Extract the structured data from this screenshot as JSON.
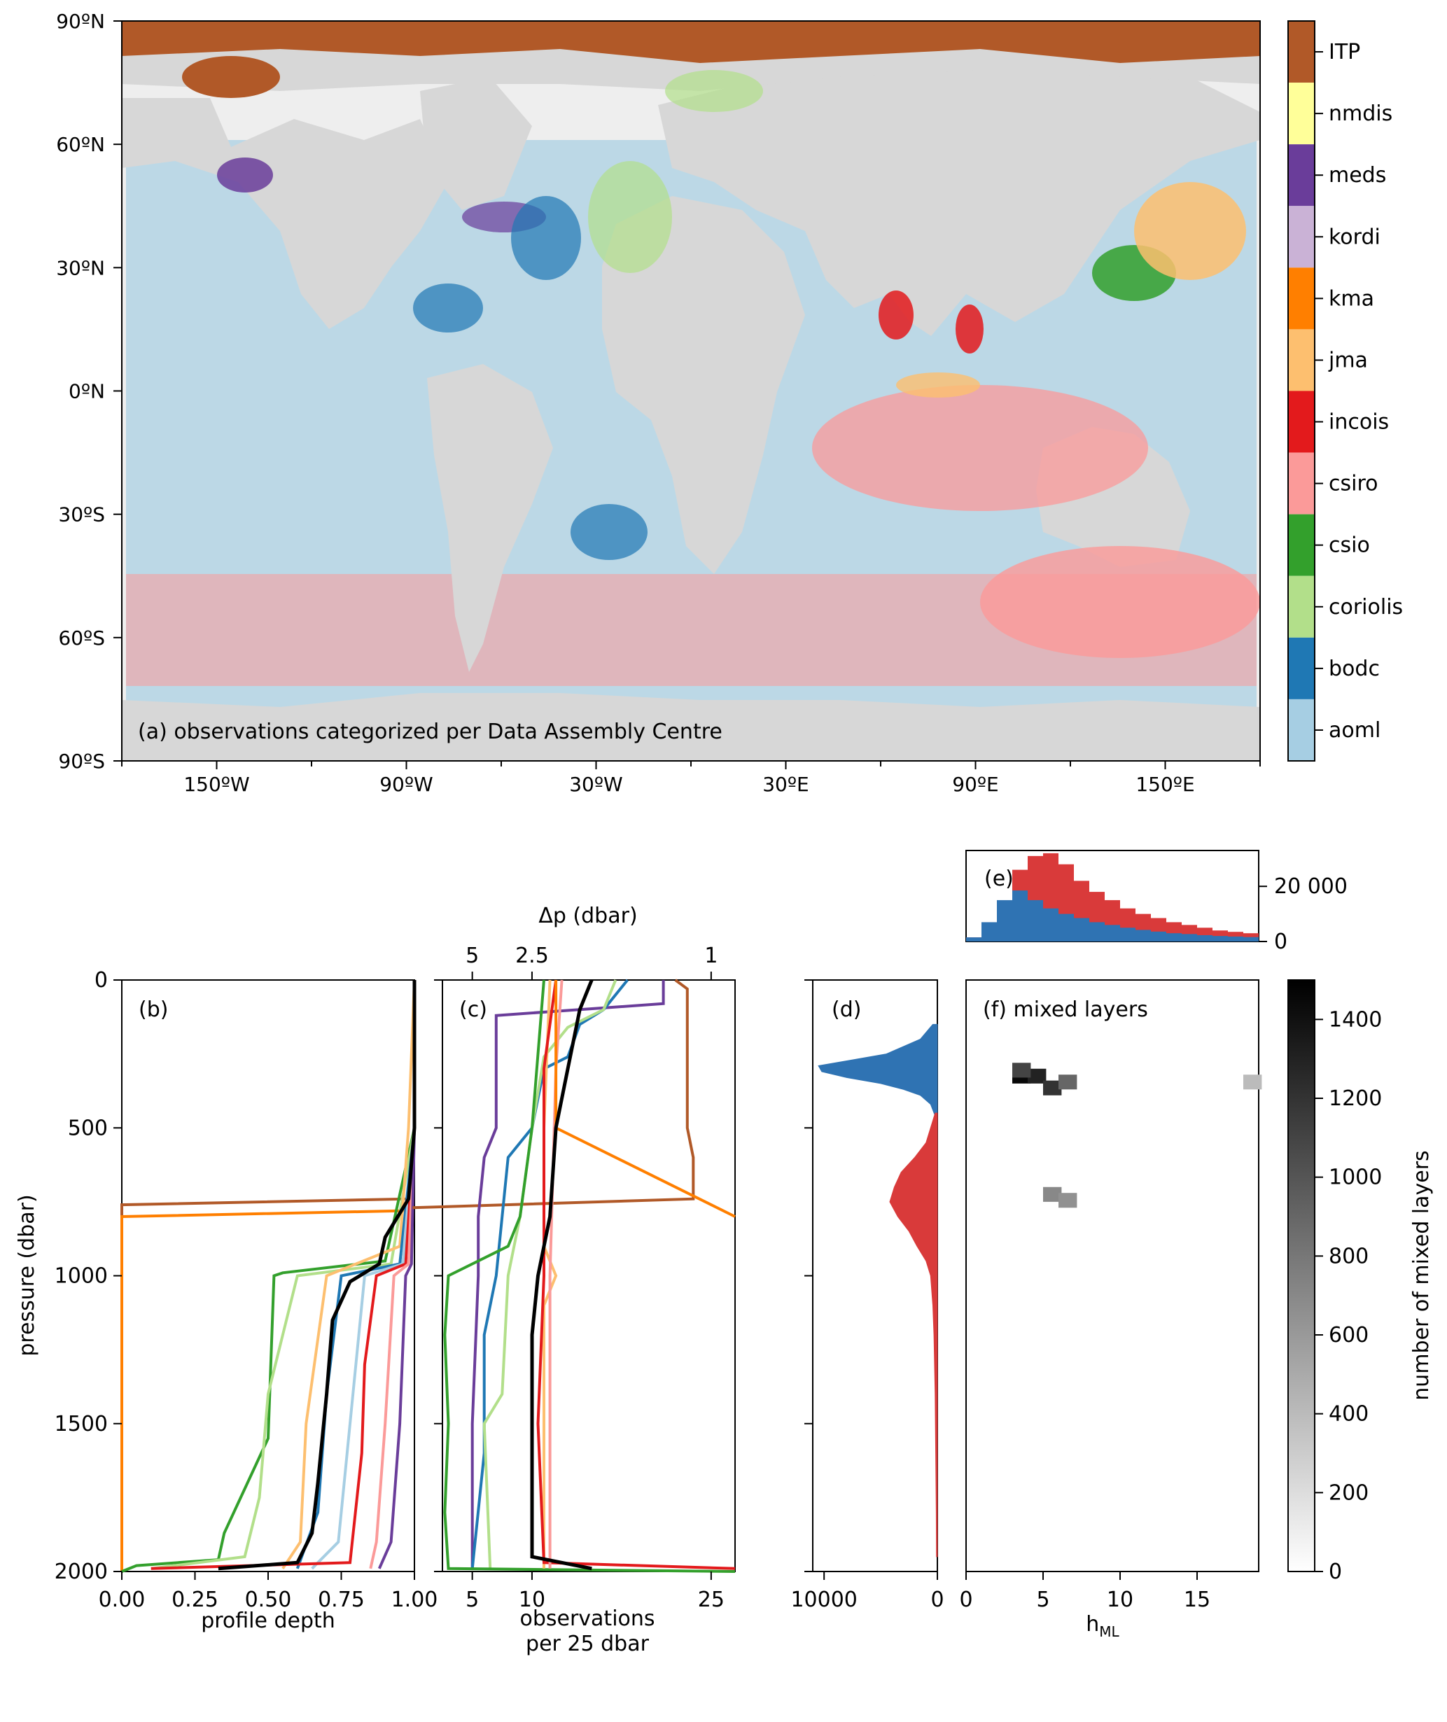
{
  "colors": {
    "aoml": "#a6cee3",
    "bodc": "#1f78b4",
    "coriolis": "#b2df8a",
    "csio": "#33a02c",
    "csiro": "#fb9a99",
    "incois": "#e31a1c",
    "jma": "#fdbf6f",
    "kma": "#ff7f00",
    "kordi": "#cab2d6",
    "meds": "#6a3d9a",
    "nmdis": "#ffff99",
    "ITP": "#b15928",
    "land": "#d7d7d7",
    "nodata": "#eeeeee",
    "ml_blue": "#2f73b3",
    "ml_red": "#d93a3a"
  },
  "panel_a": {
    "label": "(a)  observations categorized per Data Assembly Centre",
    "lat_ticks": [
      "90ºN",
      "60ºN",
      "30ºN",
      "0ºN",
      "30ºS",
      "60ºS",
      "90ºS"
    ],
    "lon_ticks": [
      "150ºW",
      "90ºW",
      "30ºW",
      "30ºE",
      "90ºE",
      "150ºE"
    ],
    "legend": [
      "ITP",
      "nmdis",
      "meds",
      "kordi",
      "kma",
      "jma",
      "incois",
      "csiro",
      "csio",
      "coriolis",
      "bodc",
      "aoml"
    ]
  },
  "panel_b": {
    "label": "(b)",
    "xlabel": "profile depth",
    "xticks": [
      "0.00",
      "0.25",
      "0.50",
      "0.75",
      "1.00"
    ]
  },
  "panel_c": {
    "label": "(c)",
    "xlabel_1": "observations",
    "xlabel_2": "per 25 dbar",
    "xticks": [
      "5",
      "10",
      "25"
    ],
    "top_label": "Δp (dbar)",
    "top_ticks": [
      "5",
      "2.5",
      "1"
    ]
  },
  "panel_d": {
    "label": "(d)",
    "xticks": [
      "10000",
      "0"
    ]
  },
  "panel_e": {
    "label": "(e)",
    "yticks": [
      "20 000",
      "0"
    ]
  },
  "panel_f": {
    "label": "(f) mixed layers",
    "xlabel": "h",
    "xlabel_sub": "ML",
    "xticks": [
      "0",
      "5",
      "10",
      "15"
    ],
    "colorbar_label": "number of mixed layers",
    "colorbar_ticks": [
      "1400",
      "1200",
      "1000",
      "800",
      "600",
      "400",
      "200",
      "0"
    ]
  },
  "shared_axis": {
    "ylabel": "pressure (dbar)",
    "yticks": [
      "0",
      "500",
      "1000",
      "1500",
      "2000"
    ]
  },
  "chart_data": [
    {
      "type": "line",
      "panel": "b",
      "xlabel": "profile depth",
      "ylabel": "pressure (dbar)",
      "xlim": [
        0,
        1
      ],
      "ylim": [
        2000,
        0
      ],
      "series": [
        {
          "name": "ITP",
          "points": [
            [
              1,
              0
            ],
            [
              1,
              500
            ],
            [
              0.98,
              740
            ],
            [
              0,
              760
            ],
            [
              0,
              2000
            ]
          ]
        },
        {
          "name": "kma",
          "points": [
            [
              1,
              0
            ],
            [
              1,
              500
            ],
            [
              0.98,
              780
            ],
            [
              0,
              800
            ],
            [
              0,
              2000
            ]
          ]
        },
        {
          "name": "csio",
          "points": [
            [
              1,
              0
            ],
            [
              1,
              500
            ],
            [
              0.9,
              950
            ],
            [
              0.55,
              990
            ],
            [
              0.52,
              1000
            ],
            [
              0.5,
              1550
            ],
            [
              0.35,
              1870
            ],
            [
              0.33,
              1960
            ],
            [
              0.05,
              1980
            ],
            [
              0,
              2000
            ]
          ]
        },
        {
          "name": "coriolis",
          "points": [
            [
              1,
              0
            ],
            [
              1,
              500
            ],
            [
              0.92,
              960
            ],
            [
              0.6,
              1000
            ],
            [
              0.5,
              1400
            ],
            [
              0.47,
              1750
            ],
            [
              0.42,
              1950
            ],
            [
              0.1,
              1990
            ]
          ]
        },
        {
          "name": "jma",
          "points": [
            [
              1,
              0
            ],
            [
              0.98,
              500
            ],
            [
              0.95,
              900
            ],
            [
              0.7,
              1000
            ],
            [
              0.63,
              1500
            ],
            [
              0.61,
              1900
            ],
            [
              0.55,
              1990
            ]
          ]
        },
        {
          "name": "bodc",
          "points": [
            [
              1,
              0
            ],
            [
              1,
              500
            ],
            [
              0.95,
              960
            ],
            [
              0.75,
              1000
            ],
            [
              0.7,
              1400
            ],
            [
              0.67,
              1800
            ],
            [
              0.6,
              1990
            ]
          ]
        },
        {
          "name": "aoml",
          "points": [
            [
              1,
              0
            ],
            [
              1,
              500
            ],
            [
              0.96,
              960
            ],
            [
              0.83,
              1000
            ],
            [
              0.78,
              1500
            ],
            [
              0.74,
              1900
            ],
            [
              0.65,
              1990
            ]
          ]
        },
        {
          "name": "incois",
          "points": [
            [
              1,
              0
            ],
            [
              1,
              500
            ],
            [
              0.97,
              960
            ],
            [
              0.87,
              1000
            ],
            [
              0.83,
              1300
            ],
            [
              0.82,
              1600
            ],
            [
              0.78,
              1970
            ],
            [
              0.1,
              1990
            ]
          ]
        },
        {
          "name": "csiro",
          "points": [
            [
              1,
              0
            ],
            [
              1,
              500
            ],
            [
              0.98,
              960
            ],
            [
              0.93,
              1000
            ],
            [
              0.9,
              1500
            ],
            [
              0.87,
              1900
            ],
            [
              0.85,
              1990
            ]
          ]
        },
        {
          "name": "meds",
          "points": [
            [
              1,
              0
            ],
            [
              1,
              500
            ],
            [
              0.99,
              960
            ],
            [
              0.97,
              1000
            ],
            [
              0.95,
              1500
            ],
            [
              0.92,
              1900
            ],
            [
              0.88,
              1990
            ]
          ]
        },
        {
          "name": "all",
          "points": [
            [
              1,
              0
            ],
            [
              1,
              500
            ],
            [
              0.98,
              740
            ],
            [
              0.9,
              870
            ],
            [
              0.88,
              960
            ],
            [
              0.78,
              1020
            ],
            [
              0.72,
              1150
            ],
            [
              0.7,
              1400
            ],
            [
              0.67,
              1700
            ],
            [
              0.65,
              1870
            ],
            [
              0.6,
              1970
            ],
            [
              0.33,
              1990
            ]
          ]
        }
      ]
    },
    {
      "type": "line",
      "panel": "c",
      "xlabel": "observations per 25 dbar",
      "ylabel": "pressure (dbar)",
      "xlim": [
        2.5,
        27
      ],
      "ylim": [
        2000,
        0
      ],
      "series": [
        {
          "name": "ITP",
          "points": [
            [
              22,
              0
            ],
            [
              23,
              30
            ],
            [
              23,
              500
            ],
            [
              23.5,
              600
            ],
            [
              23.5,
              740
            ],
            [
              0,
              770
            ]
          ]
        },
        {
          "name": "meds",
          "points": [
            [
              21,
              0
            ],
            [
              21,
              80
            ],
            [
              7,
              120
            ],
            [
              7,
              500
            ],
            [
              6,
              600
            ],
            [
              5.5,
              800
            ],
            [
              5.5,
              1000
            ],
            [
              5,
              1500
            ],
            [
              5,
              1990
            ]
          ]
        },
        {
          "name": "bodc",
          "points": [
            [
              18,
              0
            ],
            [
              16,
              100
            ],
            [
              14,
              150
            ],
            [
              13,
              260
            ],
            [
              11,
              300
            ],
            [
              10,
              500
            ],
            [
              8,
              600
            ],
            [
              7,
              1000
            ],
            [
              6,
              1200
            ],
            [
              6,
              1600
            ],
            [
              5,
              1990
            ]
          ]
        },
        {
          "name": "coriolis",
          "points": [
            [
              17,
              0
            ],
            [
              16,
              100
            ],
            [
              13,
              160
            ],
            [
              11,
              260
            ],
            [
              10,
              500
            ],
            [
              9,
              800
            ],
            [
              8,
              1000
            ],
            [
              7.5,
              1400
            ],
            [
              6,
              1500
            ],
            [
              6.5,
              1990
            ]
          ]
        },
        {
          "name": "csio",
          "points": [
            [
              11,
              0
            ],
            [
              10,
              500
            ],
            [
              9,
              800
            ],
            [
              8,
              900
            ],
            [
              3,
              1000
            ],
            [
              2.7,
              1200
            ],
            [
              3,
              1500
            ],
            [
              2.7,
              1800
            ],
            [
              3,
              1990
            ],
            [
              27,
              2000
            ]
          ]
        },
        {
          "name": "jma",
          "points": [
            [
              11.5,
              0
            ],
            [
              11,
              500
            ],
            [
              11,
              900
            ],
            [
              12,
              1000
            ],
            [
              11,
              1100
            ],
            [
              11,
              1990
            ]
          ]
        },
        {
          "name": "incois",
          "points": [
            [
              12,
              0
            ],
            [
              11,
              300
            ],
            [
              11,
              1000
            ],
            [
              10.5,
              1500
            ],
            [
              11,
              1970
            ],
            [
              27,
              1990
            ]
          ]
        },
        {
          "name": "csiro",
          "points": [
            [
              12.5,
              0
            ],
            [
              12,
              300
            ],
            [
              11.5,
              1000
            ],
            [
              11.5,
              1990
            ]
          ]
        },
        {
          "name": "kma",
          "points": [
            [
              12,
              0
            ],
            [
              12,
              500
            ],
            [
              27,
              800
            ]
          ]
        },
        {
          "name": "all",
          "points": [
            [
              15,
              0
            ],
            [
              14,
              100
            ],
            [
              13,
              300
            ],
            [
              12,
              500
            ],
            [
              11.5,
              800
            ],
            [
              10.5,
              1000
            ],
            [
              10,
              1200
            ],
            [
              10,
              1500
            ],
            [
              10,
              1950
            ],
            [
              15,
              1990
            ]
          ]
        }
      ]
    },
    {
      "type": "bar",
      "panel": "d",
      "orientation": "horizontal",
      "ylabel": "pressure (dbar)",
      "xlim": [
        11000,
        0
      ],
      "ylim": [
        2000,
        0
      ],
      "series": [
        {
          "name": "blue",
          "y": [
            150,
            200,
            250,
            270,
            290,
            310,
            330,
            350,
            370,
            390,
            420,
            460
          ],
          "values": [
            400,
            1500,
            4500,
            7500,
            10500,
            10200,
            8000,
            5000,
            3000,
            1500,
            600,
            200
          ]
        },
        {
          "name": "red",
          "y": [
            450,
            500,
            550,
            600,
            650,
            700,
            750,
            800,
            850,
            900,
            950,
            1000,
            1100,
            1200,
            1400,
            1600,
            1800,
            1950
          ],
          "values": [
            200,
            600,
            1000,
            2000,
            3200,
            3800,
            4200,
            3500,
            2500,
            1800,
            1000,
            600,
            400,
            300,
            200,
            150,
            100,
            80
          ]
        }
      ]
    },
    {
      "type": "bar",
      "panel": "e",
      "xlabel": "h_ML",
      "ylim": [
        0,
        33000
      ],
      "series": [
        {
          "name": "blue",
          "x": [
            1,
            2,
            3,
            4,
            5,
            6,
            7,
            8,
            9,
            10,
            11,
            12,
            13,
            14,
            15,
            16,
            17,
            18,
            19
          ],
          "values": [
            1500,
            7000,
            15000,
            18500,
            15000,
            12000,
            10000,
            8500,
            7000,
            6000,
            5000,
            4200,
            3600,
            3000,
            2700,
            2300,
            2000,
            1800,
            1600
          ]
        },
        {
          "name": "red",
          "x": [
            1,
            2,
            3,
            4,
            5,
            6,
            7,
            8,
            9,
            10,
            11,
            12,
            13,
            14,
            15,
            16,
            17,
            18,
            19
          ],
          "values": [
            1500,
            3000,
            9000,
            26000,
            31000,
            32000,
            28000,
            22000,
            18000,
            15000,
            12000,
            10000,
            8500,
            7000,
            6000,
            5000,
            4000,
            3500,
            3000
          ]
        }
      ]
    },
    {
      "type": "heatmap",
      "panel": "f",
      "xlabel": "h_ML",
      "ylabel": "pressure (dbar)",
      "xlim": [
        0,
        19
      ],
      "ylim": [
        2000,
        0
      ],
      "colorbar_range": [
        0,
        1500
      ],
      "cells": [
        {
          "h": 4,
          "p": 300,
          "v": 1450
        },
        {
          "h": 5,
          "p": 300,
          "v": 1300
        },
        {
          "h": 6,
          "p": 340,
          "v": 1200
        },
        {
          "h": 4,
          "p": 280,
          "v": 1100
        },
        {
          "h": 7,
          "p": 320,
          "v": 900
        },
        {
          "h": 6,
          "p": 700,
          "v": 700
        },
        {
          "h": 7,
          "p": 720,
          "v": 650
        },
        {
          "h": 19,
          "p": 320,
          "v": 400
        }
      ]
    }
  ]
}
